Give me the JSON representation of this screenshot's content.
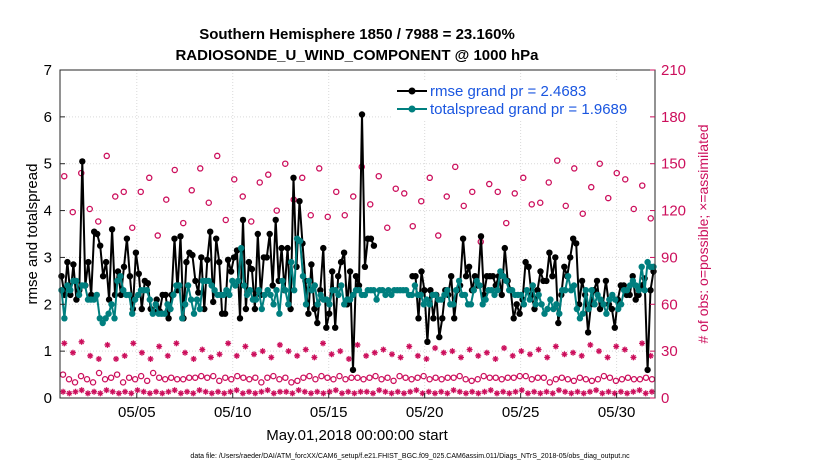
{
  "chart_data": {
    "type": "line",
    "title_line1": "Southern Hemisphere 1850 / 7988 = 23.160%",
    "title_line2": "RADIOSONDE_U_WIND_COMPONENT @ 1000 hPa",
    "xlabel": "May.01,2018 00:00:00 start",
    "ylabel_left": "rmse and totalspread",
    "ylabel_right": "# of obs: o=possible; ×=assimilated",
    "x_day_start": 1,
    "x_day_end": 32.0,
    "y_left_lim": [
      0,
      7
    ],
    "y_left_ticks": [
      "0",
      "1",
      "2",
      "3",
      "4",
      "5",
      "6",
      "7"
    ],
    "y_right_lim": [
      0,
      210
    ],
    "y_right_ticks": [
      "0",
      "30",
      "60",
      "90",
      "120",
      "150",
      "180",
      "210"
    ],
    "x_ticks": [
      {
        "day": 5,
        "label": "05/05"
      },
      {
        "day": 10,
        "label": "05/10"
      },
      {
        "day": 15,
        "label": "05/15"
      },
      {
        "day": 20,
        "label": "05/20"
      },
      {
        "day": 25,
        "label": "05/25"
      },
      {
        "day": 30,
        "label": "05/30"
      }
    ],
    "grid": true,
    "legend_position": "top-right",
    "series": [
      {
        "name": "rmse grand pr = 2.4683",
        "color": "#000000",
        "values": [
          2.6,
          2.2,
          2.9,
          2.2,
          2.85,
          2.1,
          2.3,
          5.05,
          2.4,
          2.9,
          2.2,
          3.55,
          3.5,
          3.25,
          2.6,
          2.9,
          2.1,
          3.6,
          2.2,
          2.7,
          2.2,
          2.8,
          3.4,
          2.6,
          1.9,
          3.1,
          2.65,
          1.9,
          2.5,
          2.45,
          1.9,
          1.85,
          2.1,
          1.85,
          2.2,
          2.2,
          1.7,
          2.2,
          3.4,
          2.3,
          3.45,
          1.7,
          2.9,
          3.1,
          3.05,
          2.5,
          2.25,
          3.0,
          1.9,
          2.95,
          3.55,
          2.05,
          3.4,
          2.9,
          1.8,
          1.8,
          2.95,
          2.7,
          3.0,
          3.15,
          1.7,
          3.8,
          1.9,
          2.9,
          2.75,
          1.9,
          3.5,
          2.2,
          3.0,
          3.0,
          3.5,
          2.4,
          3.8,
          2.5,
          3.2,
          2.3,
          3.2,
          1.9,
          4.7,
          2.8,
          4.2,
          3.3,
          2.5,
          1.8,
          2.85,
          1.9,
          1.6,
          2.3,
          3.2,
          1.5,
          1.8,
          2.7,
          1.5,
          2.6,
          2.9,
          3.1,
          2.0,
          2.7,
          0.6,
          2.6,
          2.4,
          6.05,
          2.8,
          3.4,
          3.4,
          3.25,
          null,
          null,
          null,
          null,
          null,
          null,
          null,
          null,
          null,
          null,
          null,
          null,
          2.6,
          2.6,
          1.7,
          2.7,
          2.3,
          1.2,
          2.3,
          1.7,
          2.2,
          1.3,
          1.7,
          2.3,
          2.2,
          2.6,
          1.7,
          2.3,
          2.4,
          3.4,
          2.6,
          2.8,
          2.3,
          2.6,
          2.4,
          3.45,
          2.2,
          2.6,
          2.6,
          2.6,
          2.4,
          2.6,
          2.2,
          3.2,
          2.5,
          2.3,
          1.7,
          2.0,
          1.8,
          2.1,
          2.9,
          2.8,
          2.2,
          1.9,
          2.3,
          2.7,
          2.5,
          2.5,
          3.1,
          2.6,
          3.0,
          1.6,
          2.2,
          2.8,
          2.6,
          3.0,
          3.4,
          3.3,
          2.0,
          2.5,
          2.2,
          1.4,
          2.0,
          2.3,
          2.5,
          1.9,
          2.0,
          2.5,
          2.0,
          1.9,
          1.5,
          2.1,
          2.4,
          2.4,
          2.2,
          2.2,
          2.6,
          2.1,
          2.2,
          2.4,
          2.55,
          0.6,
          2.3,
          2.7
        ]
      },
      {
        "name": "totalspread grand pr = 1.9689",
        "color": "#007f7f",
        "values": [
          2.3,
          1.7,
          2.4,
          2.3,
          2.5,
          2.5,
          2.2,
          2.4,
          2.4,
          2.1,
          2.1,
          2.1,
          2.2,
          1.7,
          1.6,
          1.7,
          1.8,
          2.0,
          1.7,
          2.5,
          2.6,
          2.3,
          2.2,
          2.2,
          1.8,
          2.1,
          2.2,
          2.3,
          2.3,
          2.3,
          2.1,
          1.8,
          2.0,
          1.8,
          1.8,
          1.8,
          2.0,
          1.9,
          2.2,
          2.4,
          2.4,
          1.7,
          2.0,
          2.4,
          2.1,
          1.8,
          2.1,
          1.9,
          2.5,
          2.5,
          2.5,
          2.4,
          2.3,
          2.2,
          2.2,
          2.2,
          2.3,
          2.2,
          2.5,
          2.4,
          2.5,
          3.2,
          2.4,
          2.2,
          2.3,
          2.1,
          2.1,
          2.3,
          1.9,
          2.2,
          2.3,
          2.2,
          2.0,
          2.3,
          1.8,
          2.5,
          2.3,
          2.0,
          2.9,
          2.3,
          3.4,
          3.35,
          2.6,
          2.0,
          2.5,
          2.3,
          2.4,
          2.0,
          2.2,
          2.1,
          2.1,
          2.0,
          2.3,
          2.3,
          2.2,
          2.4,
          2.0,
          2.1,
          2.1,
          2.2,
          2.3,
          2.3,
          2.2,
          2.2,
          2.3,
          2.3,
          2.3,
          2.1,
          2.3,
          2.3,
          2.2,
          2.3,
          2.2,
          2.3,
          2.3,
          2.3,
          2.3,
          2.3,
          2.2,
          2.2,
          2.4,
          2.2,
          2.2,
          2.0,
          2.1,
          2.0,
          2.2,
          2.2,
          2.1,
          2.1,
          2.2,
          2.3,
          2.0,
          2.0,
          2.3,
          2.5,
          2.2,
          2.2,
          2.0,
          2.0,
          2.3,
          2.5,
          2.4,
          2.0,
          2.1,
          2.3,
          2.3,
          2.2,
          2.3,
          2.7,
          2.6,
          2.5,
          2.3,
          2.3,
          2.2,
          2.2,
          2.2,
          2.0,
          2.3,
          2.1,
          2.4,
          2.0,
          2.2,
          2.0,
          1.8,
          1.9,
          2.1,
          1.9,
          2.0,
          1.8,
          2.3,
          2.3,
          2.6,
          2.3,
          2.4,
          1.9,
          1.7,
          1.8,
          2.3,
          1.9,
          2.3,
          2.0,
          2.2,
          2.1,
          2.0,
          1.8,
          2.1,
          2.2,
          2.1,
          1.9,
          2.0,
          2.3,
          2.3,
          2.4,
          2.5,
          2.4,
          2.3,
          2.8,
          2.3,
          2.9,
          2.8,
          2.8
        ]
      }
    ],
    "obs_possible_marker": "o",
    "obs_assimilated_marker": "*",
    "obs_color": "#cc0f5c",
    "obs_possible_upper": [
      142,
      119,
      144,
      121,
      113,
      155,
      129,
      132,
      109,
      132,
      141,
      104,
      127,
      146,
      112,
      133,
      147,
      125,
      155,
      114,
      140,
      129,
      113,
      138,
      143,
      120,
      150,
      127,
      141,
      117,
      147,
      116,
      132,
      117,
      129,
      148,
      124,
      142,
      109,
      134,
      131,
      110,
      126,
      141,
      104,
      129,
      148,
      123,
      132,
      100,
      137,
      132,
      112,
      131,
      141,
      124,
      125,
      138,
      152,
      123,
      147,
      118,
      135,
      150,
      128,
      144,
      140,
      121,
      136,
      115
    ],
    "obs_possible_lower": [
      15,
      12,
      10,
      14,
      12,
      10,
      16,
      12,
      13,
      15,
      10,
      13,
      12,
      14,
      11,
      16,
      13,
      12,
      13,
      12,
      12,
      13,
      13,
      14,
      13,
      14,
      11,
      13,
      12,
      14,
      13,
      12,
      13,
      10,
      13,
      14,
      12,
      13,
      10,
      11,
      13,
      14,
      12,
      14,
      13,
      12,
      14,
      12,
      13,
      13,
      12,
      13,
      14,
      12,
      13,
      11,
      14,
      13,
      12,
      13,
      14,
      12,
      13,
      12,
      13,
      13,
      14,
      12,
      11,
      12,
      14,
      13,
      13,
      12,
      13,
      13,
      14,
      14,
      12,
      13,
      13,
      10,
      12,
      13,
      12,
      11,
      13,
      12,
      11,
      12,
      14,
      13,
      11,
      12,
      13,
      12,
      12,
      13,
      12
    ],
    "obs_assimilated_upper": [
      35,
      29,
      36,
      27,
      25,
      34,
      25,
      27,
      35,
      29,
      25,
      33,
      27,
      35,
      29,
      25,
      31,
      26,
      28,
      35,
      27,
      33,
      28,
      30,
      26,
      34,
      30,
      27,
      31,
      26,
      35,
      28,
      30,
      25,
      34,
      27,
      29,
      31,
      28,
      26,
      33,
      27,
      25,
      32,
      29,
      30,
      26,
      31,
      27,
      29,
      25,
      32,
      27,
      30,
      28,
      31,
      26,
      33,
      28,
      29,
      27,
      34,
      30,
      26,
      33,
      31,
      26,
      35,
      27
    ],
    "obs_assimilated_lower": [
      4,
      3,
      4,
      5,
      3,
      4,
      3,
      5,
      4,
      3,
      4,
      3,
      5,
      4,
      3,
      4,
      3,
      4,
      5,
      3,
      4,
      3,
      5,
      4,
      3,
      4,
      3,
      4,
      5,
      3,
      4,
      3,
      4,
      5,
      3,
      4,
      4,
      3,
      5,
      4,
      3,
      4,
      3,
      4,
      5,
      3,
      4,
      3,
      4,
      4,
      3,
      5,
      4,
      3,
      4,
      3,
      4,
      5,
      3,
      4,
      3,
      4,
      3,
      5,
      4,
      3,
      4,
      3,
      4,
      5,
      3,
      4,
      3,
      4,
      5,
      3,
      4,
      3,
      4,
      3,
      5,
      4,
      3,
      4,
      3,
      4,
      5,
      3,
      4,
      3,
      4,
      3,
      4,
      5,
      3,
      4
    ]
  },
  "footer": "data file: /Users/raeder/DAI/ATM_forcXX/CAM6_setup/f.e21.FHIST_BGC.f09_025.CAM6assim.011/Diags_NTrS_2018-05/obs_diag_output.nc"
}
